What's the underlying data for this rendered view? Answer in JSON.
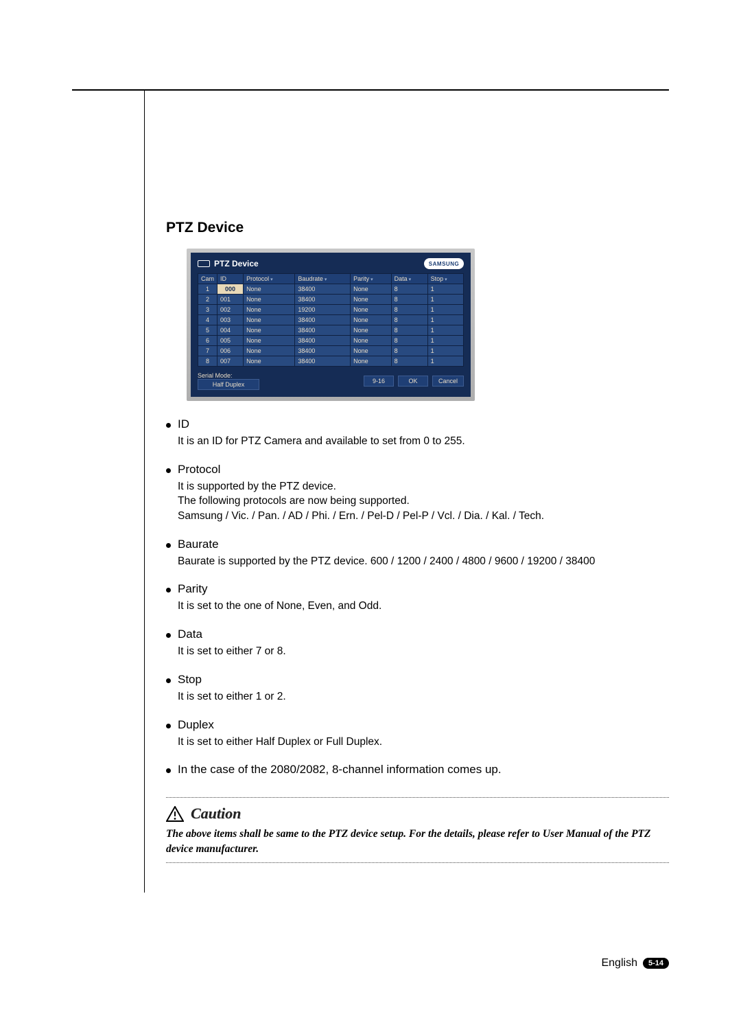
{
  "section_title": "PTZ Device",
  "ptz_window": {
    "title": "PTZ Device",
    "brand": "SAMSUNG",
    "columns": [
      "Cam",
      "ID",
      "Protocol",
      "Baudrate",
      "Parity",
      "Data",
      "Stop"
    ],
    "dropdown_cols": [
      "Protocol",
      "Baudrate",
      "Parity",
      "Data",
      "Stop"
    ],
    "rows": [
      {
        "cam": "1",
        "id": "000",
        "protocol": "None",
        "baudrate": "38400",
        "parity": "None",
        "data": "8",
        "stop": "1",
        "sel": true
      },
      {
        "cam": "2",
        "id": "001",
        "protocol": "None",
        "baudrate": "38400",
        "parity": "None",
        "data": "8",
        "stop": "1"
      },
      {
        "cam": "3",
        "id": "002",
        "protocol": "None",
        "baudrate": "19200",
        "parity": "None",
        "data": "8",
        "stop": "1"
      },
      {
        "cam": "4",
        "id": "003",
        "protocol": "None",
        "baudrate": "38400",
        "parity": "None",
        "data": "8",
        "stop": "1"
      },
      {
        "cam": "5",
        "id": "004",
        "protocol": "None",
        "baudrate": "38400",
        "parity": "None",
        "data": "8",
        "stop": "1"
      },
      {
        "cam": "6",
        "id": "005",
        "protocol": "None",
        "baudrate": "38400",
        "parity": "None",
        "data": "8",
        "stop": "1"
      },
      {
        "cam": "7",
        "id": "006",
        "protocol": "None",
        "baudrate": "38400",
        "parity": "None",
        "data": "8",
        "stop": "1"
      },
      {
        "cam": "8",
        "id": "007",
        "protocol": "None",
        "baudrate": "38400",
        "parity": "None",
        "data": "8",
        "stop": "1"
      }
    ],
    "serial_mode_label": "Serial Mode:",
    "serial_mode_value": "Half Duplex",
    "buttons": {
      "range": "9-16",
      "ok": "OK",
      "cancel": "Cancel"
    }
  },
  "bullets": [
    {
      "title": "ID",
      "lines": [
        "It is an ID for PTZ Camera and available to set from 0 to 255."
      ]
    },
    {
      "title": "Protocol",
      "lines": [
        "It is supported by the PTZ device.",
        "The following protocols are now being supported.",
        "Samsung / Vic. / Pan. / AD / Phi. / Ern. / Pel-D / Pel-P / Vcl. / Dia. / Kal. / Tech."
      ]
    },
    {
      "title": "Baurate",
      "lines": [
        "Baurate is supported by the PTZ device. 600 / 1200 / 2400 / 4800 / 9600 / 19200 / 38400"
      ]
    },
    {
      "title": "Parity",
      "lines": [
        "It is set to the one of None, Even, and Odd."
      ]
    },
    {
      "title": "Data",
      "lines": [
        "It is set to either 7 or 8."
      ]
    },
    {
      "title": "Stop",
      "lines": [
        "It is set to either 1 or 2."
      ]
    },
    {
      "title": "Duplex",
      "lines": [
        "It is set to either Half Duplex or Full Duplex."
      ]
    },
    {
      "title": "In the case of the 2080/2082, 8-channel information comes up.",
      "lines": []
    }
  ],
  "caution": {
    "label": "Caution",
    "lines": [
      "The above items shall be same to the PTZ device setup.",
      "For the details, please refer to User Manual of the PTZ device manufacturer."
    ]
  },
  "footer": {
    "language": "English",
    "page": "5-14"
  }
}
